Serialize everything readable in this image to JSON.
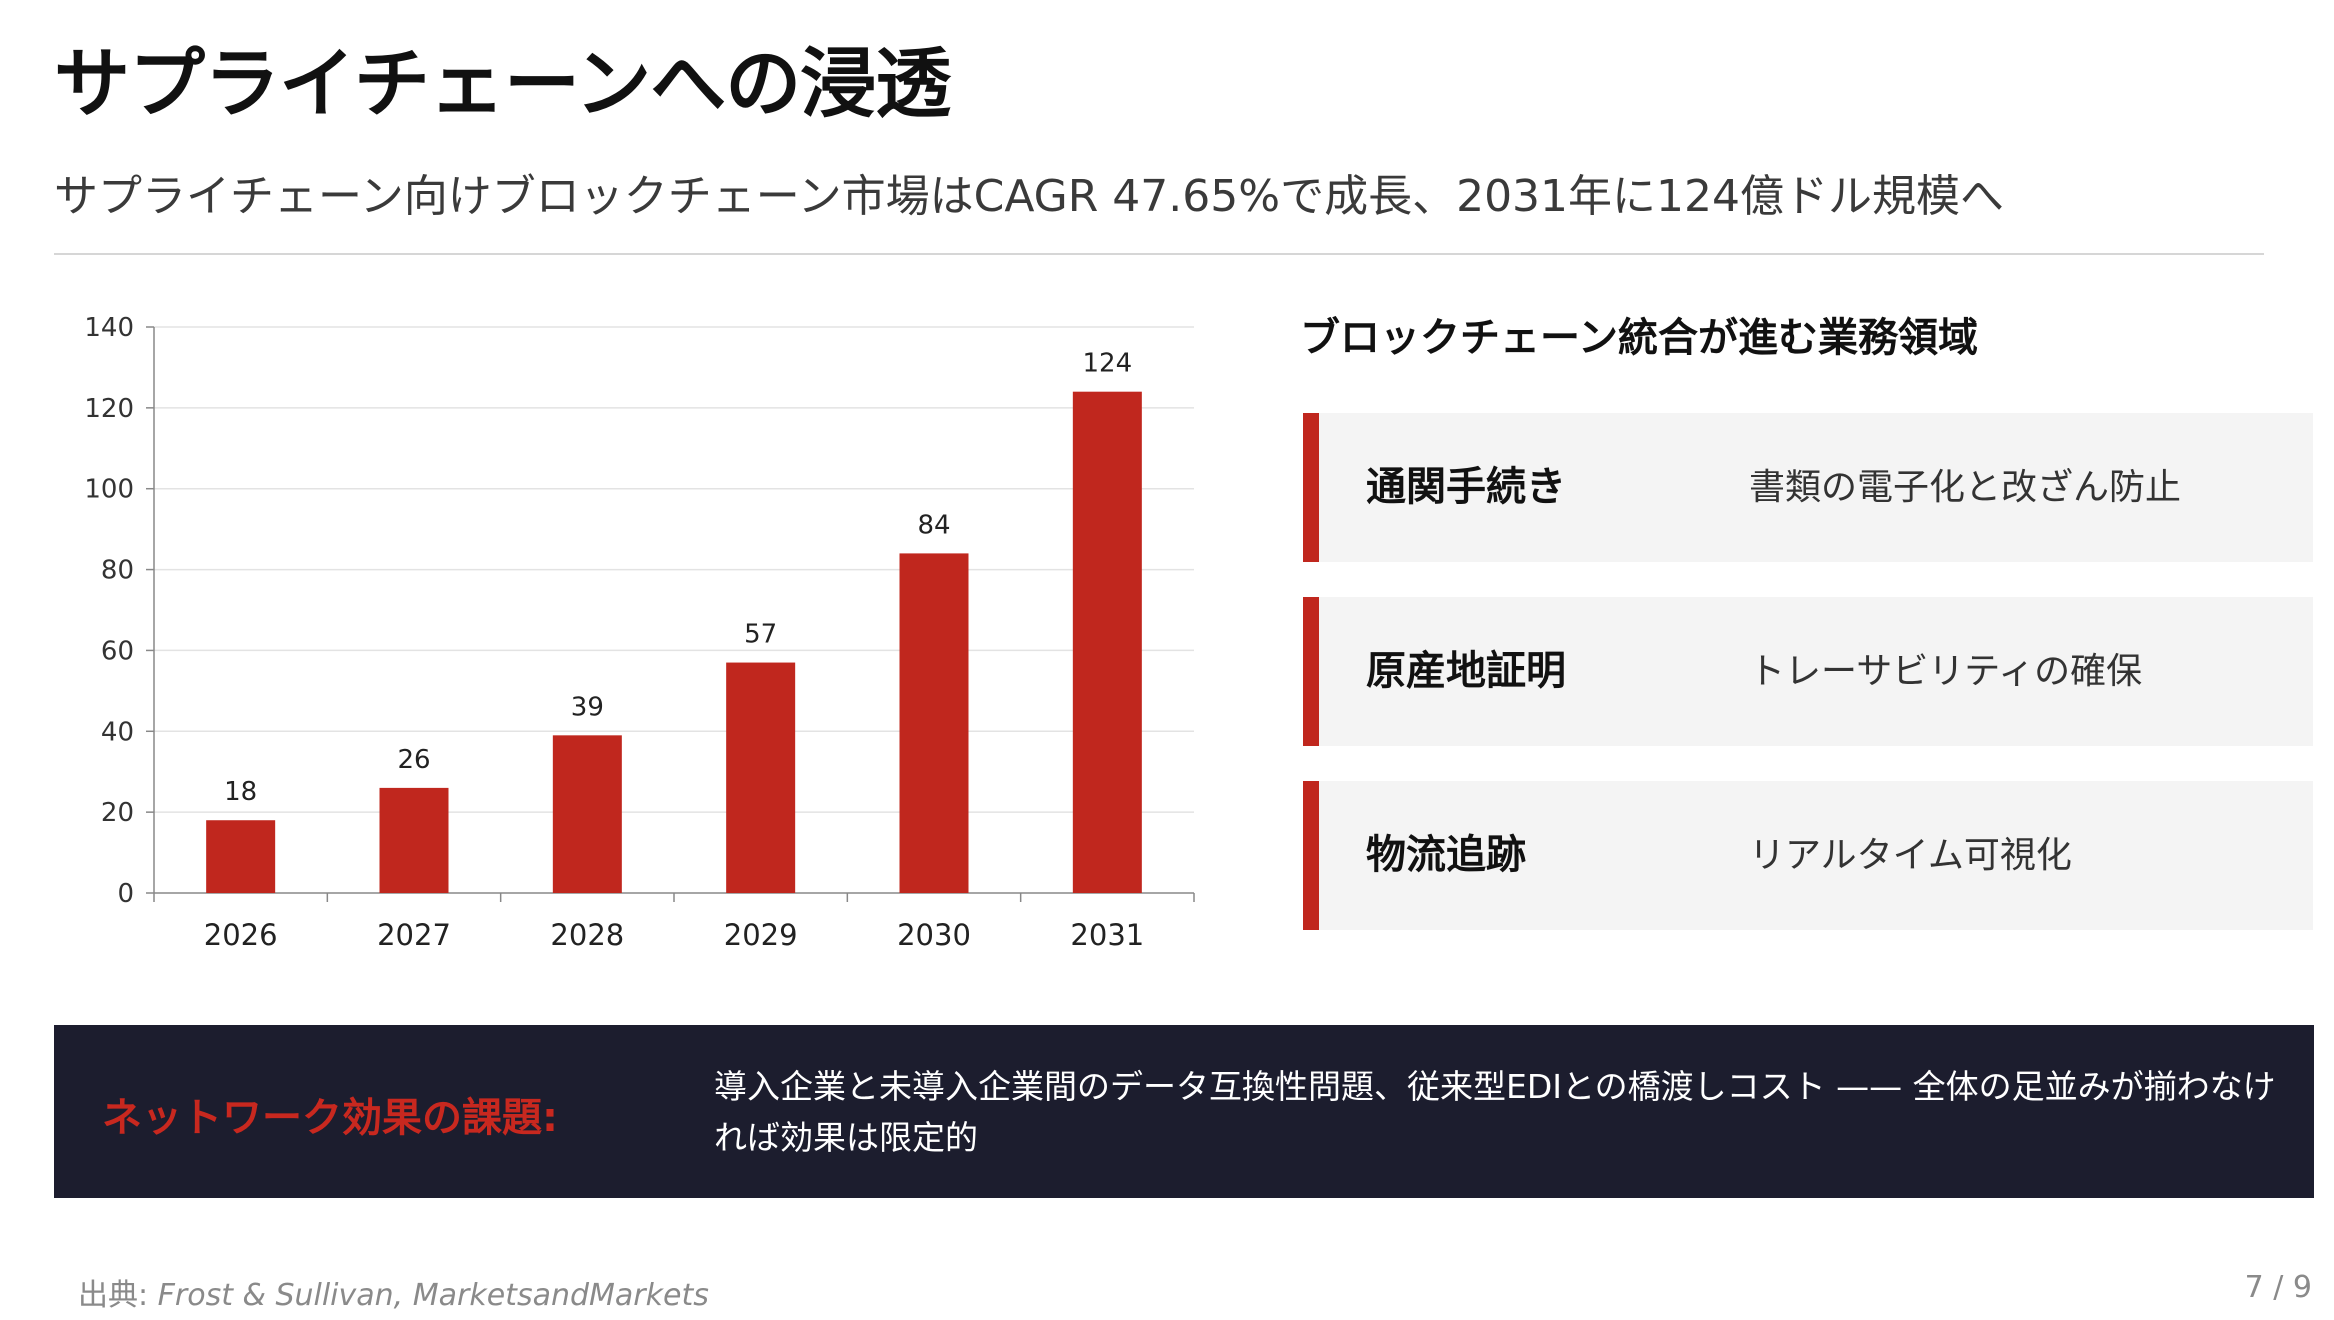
{
  "title": "サプライチェーンへの浸透",
  "subtitle": "サプライチェーン向けブロックチェーン市場はCAGR 47.65%で成長、2031年に124億ドル規模へ",
  "chart_data": {
    "type": "bar",
    "categories": [
      "2026",
      "2027",
      "2028",
      "2029",
      "2030",
      "2031"
    ],
    "values": [
      18,
      26,
      39,
      57,
      84,
      124
    ],
    "ylim": [
      0,
      140
    ],
    "yticks": [
      0,
      20,
      40,
      60,
      80,
      100,
      120,
      140
    ],
    "bar_color": "#c0271e",
    "grid": true,
    "data_labels": true
  },
  "areas": {
    "heading": "ブロックチェーン統合が進む業務領域",
    "items": [
      {
        "name": "通関手続き",
        "desc": "書類の電子化と改ざん防止"
      },
      {
        "name": "原産地証明",
        "desc": "トレーサビリティの確保"
      },
      {
        "name": "物流追跡",
        "desc": "リアルタイム可視化"
      }
    ],
    "accent_color": "#c0271e"
  },
  "callout": {
    "label": "ネットワーク効果の課題:",
    "text": "導入企業と未導入企業間のデータ互換性問題、従来型EDIとの橋渡しコスト —— 全体の足並みが揃わなければ効果は限定的"
  },
  "footer": {
    "source_prefix": "出典: ",
    "source_names": "Frost & Sullivan, MarketsandMarkets",
    "page": "7 / 9"
  }
}
